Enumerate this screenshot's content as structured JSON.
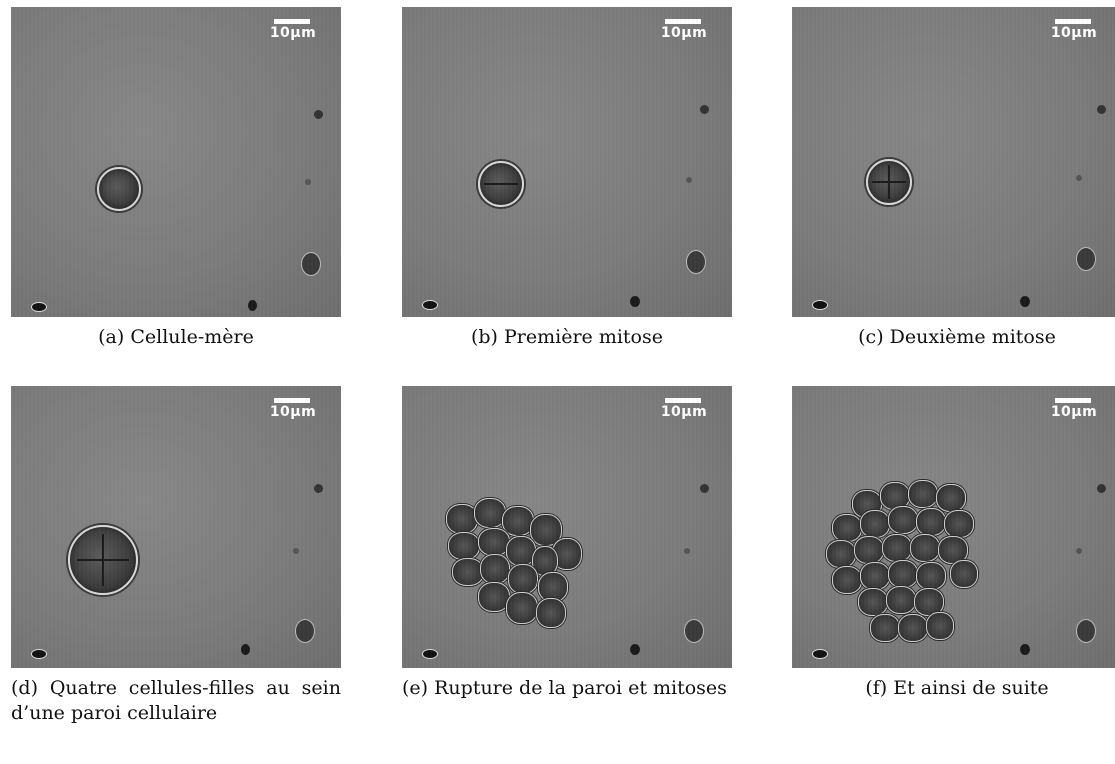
{
  "figure": {
    "scale_label": "10µm",
    "panels": [
      {
        "caption": "(a) Cellule-mère"
      },
      {
        "caption": "(b) Première mitose"
      },
      {
        "caption": "(c) Deuxième mitose"
      },
      {
        "caption": "(d) Quatre cellules-filles au sein d’une paroi cellulaire"
      },
      {
        "caption": "(e) Rupture de la paroi et mitoses"
      },
      {
        "caption": "(f) Et ainsi de suite"
      }
    ]
  }
}
